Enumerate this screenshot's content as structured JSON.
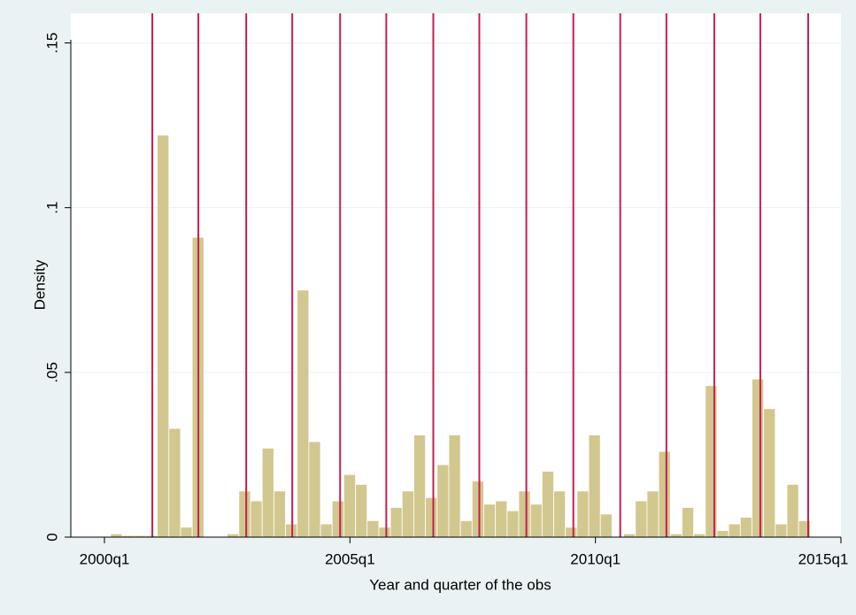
{
  "chart_data": {
    "type": "histogram",
    "x_label": "Year and quarter of the obs",
    "y_label": "Density",
    "bins": [
      160.5,
      161.45,
      162.4,
      163.35,
      164.3,
      165.25,
      166.2,
      167.15,
      168.1,
      169.05,
      170,
      170.95,
      171.9,
      172.85,
      173.8,
      174.75,
      175.7,
      176.65,
      177.6,
      178.55,
      179.5,
      180.45,
      181.4,
      182.35,
      183.3,
      184.25,
      185.2,
      186.15,
      187.1,
      188.05,
      189,
      189.95,
      190.9,
      191.85,
      192.8,
      193.75,
      194.7,
      195.65,
      196.6,
      197.55,
      198.5,
      199.45,
      200.4,
      201.35,
      202.3,
      203.25,
      204.2,
      205.15,
      206.1,
      207.05,
      208,
      208.95,
      209.9,
      210.85,
      211.8,
      212.75,
      213.7,
      214.65,
      215.6,
      216.55,
      217.5
    ],
    "values": [
      0.001,
      0.0005,
      0.0005,
      0.0005,
      0.122,
      0.033,
      0.003,
      0.091,
      0,
      0,
      0.001,
      0.014,
      0.011,
      0.027,
      0.014,
      0.004,
      0.075,
      0.029,
      0.004,
      0.011,
      0.019,
      0.016,
      0.005,
      0.003,
      0.009,
      0.014,
      0.031,
      0.012,
      0.022,
      0.031,
      0.005,
      0.017,
      0.01,
      0.011,
      0.008,
      0.014,
      0.01,
      0.02,
      0.014,
      0.003,
      0.014,
      0.031,
      0.007,
      0,
      0.001,
      0.011,
      0.014,
      0.026,
      0.001,
      0.009,
      0.001,
      0.046,
      0.002,
      0.004,
      0.006,
      0.048,
      0.039,
      0.004,
      0.016,
      0.005
    ],
    "color": "#d2c88f",
    "vlines": [
      163.9,
      167.65,
      171.55,
      175.3,
      179.2,
      182.96,
      186.79,
      190.54,
      194.37,
      198.2,
      202.02,
      205.78,
      209.68,
      213.43,
      217.33
    ],
    "vline_color": "#c41e4e",
    "xlim": [
      157.26,
      220.0
    ],
    "xticks": [
      {
        "value": 160,
        "label": "2000q1"
      },
      {
        "value": 180,
        "label": "2005q1"
      },
      {
        "value": 200,
        "label": "2010q1"
      },
      {
        "value": 220,
        "label": "2015q1"
      }
    ],
    "ylim": [
      0,
      0.159
    ],
    "yticks": [
      0,
      {
        "value": 0.05,
        "label": ".05"
      },
      {
        "value": 0.1,
        "label": ".1"
      },
      {
        "value": 0.15,
        "label": ".15"
      }
    ],
    "grid": true
  }
}
